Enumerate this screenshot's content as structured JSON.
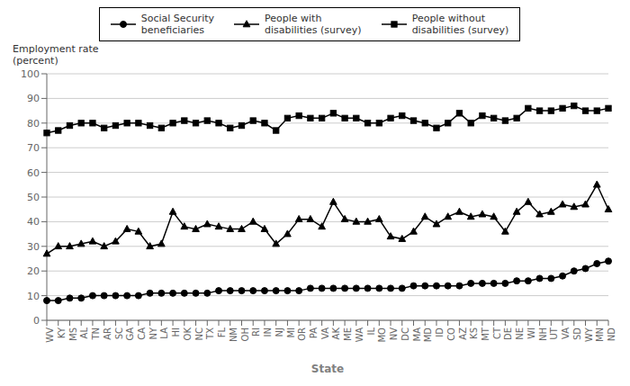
{
  "chart_data": {
    "type": "line",
    "xlabel": "State",
    "ylabel": "Employment rate\n(percent)",
    "categories": [
      "WV",
      "KY",
      "MS",
      "AL",
      "TN",
      "AR",
      "SC",
      "GA",
      "CA",
      "NY",
      "LA",
      "HI",
      "OK",
      "NC",
      "TX",
      "FL",
      "NM",
      "OH",
      "RI",
      "IN",
      "NJ",
      "MI",
      "OR",
      "PA",
      "VA",
      "AK",
      "ME",
      "WA",
      "IL",
      "MO",
      "NV",
      "DC",
      "MA",
      "MD",
      "ID",
      "CO",
      "AZ",
      "KS",
      "MT",
      "CT",
      "DE",
      "NE",
      "WI",
      "NH",
      "UT",
      "VA",
      "SD",
      "WY",
      "MN",
      "ND"
    ],
    "series": [
      {
        "name": "Social Security\nbeneficiaries",
        "color": "#000000",
        "marker": "circle",
        "values": [
          8,
          8,
          9,
          9,
          10,
          10,
          10,
          10,
          10,
          11,
          11,
          11,
          11,
          11,
          11,
          12,
          12,
          12,
          12,
          12,
          12,
          12,
          12,
          13,
          13,
          13,
          13,
          13,
          13,
          13,
          13,
          13,
          14,
          14,
          14,
          14,
          14,
          15,
          15,
          15,
          15,
          16,
          16,
          17,
          17,
          18,
          20,
          21,
          23,
          24
        ]
      },
      {
        "name": "People with\ndisabilities (survey)",
        "color": "#000000",
        "marker": "triangle",
        "values": [
          27,
          30,
          30,
          31,
          32,
          30,
          32,
          37,
          36,
          30,
          31,
          44,
          38,
          37,
          39,
          38,
          37,
          37,
          40,
          37,
          31,
          35,
          41,
          41,
          38,
          48,
          41,
          40,
          40,
          41,
          34,
          33,
          36,
          42,
          39,
          42,
          44,
          42,
          43,
          42,
          36,
          44,
          48,
          43,
          44,
          47,
          46,
          47,
          55,
          45
        ]
      },
      {
        "name": "People without\ndisabilities (survey)",
        "color": "#000000",
        "marker": "square",
        "values": [
          76,
          77,
          79,
          80,
          80,
          78,
          79,
          80,
          80,
          79,
          78,
          80,
          81,
          80,
          81,
          80,
          78,
          79,
          81,
          80,
          77,
          82,
          83,
          82,
          82,
          84,
          82,
          82,
          80,
          80,
          82,
          83,
          81,
          80,
          78,
          80,
          84,
          80,
          83,
          82,
          81,
          82,
          86,
          85,
          85,
          86,
          87,
          85,
          85,
          86
        ]
      }
    ],
    "ylim": [
      0,
      100
    ],
    "yticks": [
      0,
      10,
      20,
      30,
      40,
      50,
      60,
      70,
      80,
      90,
      100
    ],
    "grid": true,
    "legend": "top"
  }
}
